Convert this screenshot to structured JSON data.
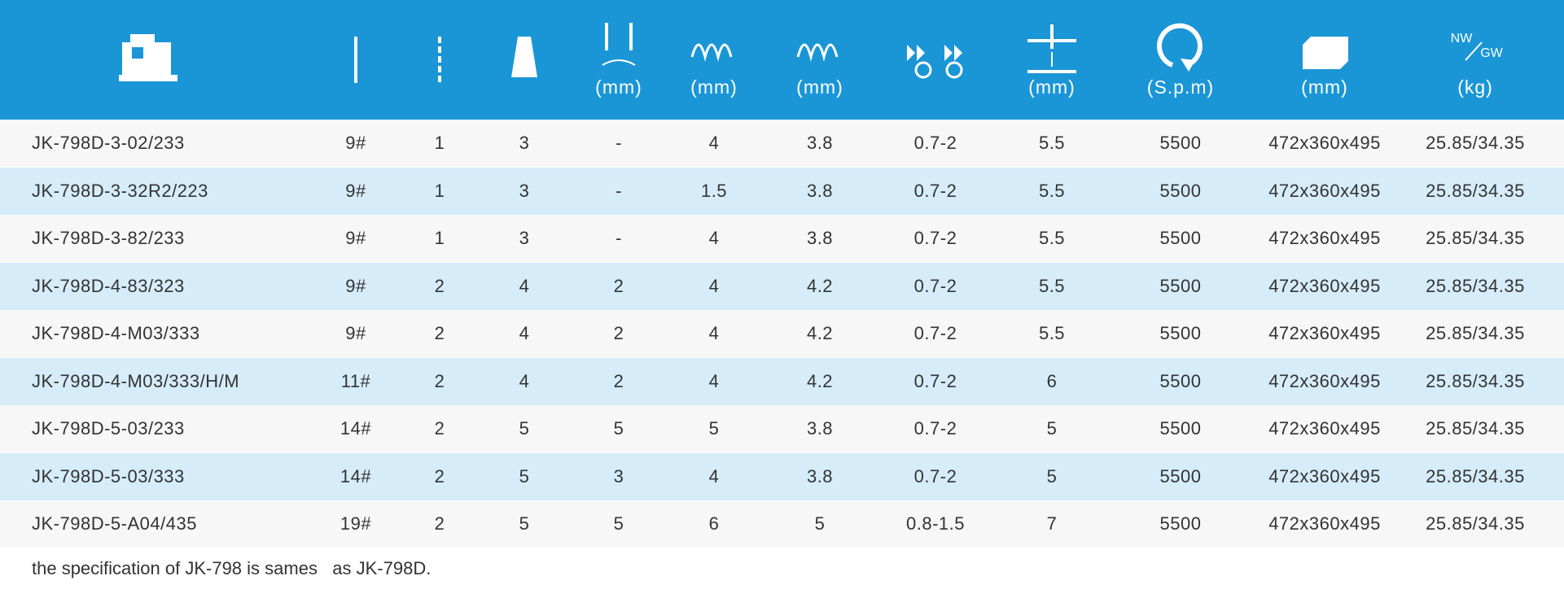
{
  "header_units": [
    "(mm)",
    "(mm)",
    "(mm)",
    "(mm)",
    "(S.p.m)",
    "(mm)",
    "(kg)"
  ],
  "weight_label": {
    "nw": "NW",
    "gw": "GW"
  },
  "table": {
    "rows": [
      [
        "JK-798D-3-02/233",
        "9#",
        "1",
        "3",
        "-",
        "4",
        "3.8",
        "0.7-2",
        "5.5",
        "5500",
        "472x360x495",
        "25.85/34.35"
      ],
      [
        "JK-798D-3-32R2/223",
        "9#",
        "1",
        "3",
        "-",
        "1.5",
        "3.8",
        "0.7-2",
        "5.5",
        "5500",
        "472x360x495",
        "25.85/34.35"
      ],
      [
        "JK-798D-3-82/233",
        "9#",
        "1",
        "3",
        "-",
        "4",
        "3.8",
        "0.7-2",
        "5.5",
        "5500",
        "472x360x495",
        "25.85/34.35"
      ],
      [
        "JK-798D-4-83/323",
        "9#",
        "2",
        "4",
        "2",
        "4",
        "4.2",
        "0.7-2",
        "5.5",
        "5500",
        "472x360x495",
        "25.85/34.35"
      ],
      [
        "JK-798D-4-M03/333",
        "9#",
        "2",
        "4",
        "2",
        "4",
        "4.2",
        "0.7-2",
        "5.5",
        "5500",
        "472x360x495",
        "25.85/34.35"
      ],
      [
        "JK-798D-4-M03/333/H/M",
        "11#",
        "2",
        "4",
        "2",
        "4",
        "4.2",
        "0.7-2",
        "6",
        "5500",
        "472x360x495",
        "25.85/34.35"
      ],
      [
        "JK-798D-5-03/233",
        "14#",
        "2",
        "5",
        "5",
        "5",
        "3.8",
        "0.7-2",
        "5",
        "5500",
        "472x360x495",
        "25.85/34.35"
      ],
      [
        "JK-798D-5-03/333",
        "14#",
        "2",
        "5",
        "3",
        "4",
        "3.8",
        "0.7-2",
        "5",
        "5500",
        "472x360x495",
        "25.85/34.35"
      ],
      [
        "JK-798D-5-A04/435",
        "19#",
        "2",
        "5",
        "5",
        "6",
        "5",
        "0.8-1.5",
        "7",
        "5500",
        "472x360x495",
        "25.85/34.35"
      ]
    ]
  },
  "footnote": "the specification of JK-798 is sames   as JK-798D."
}
